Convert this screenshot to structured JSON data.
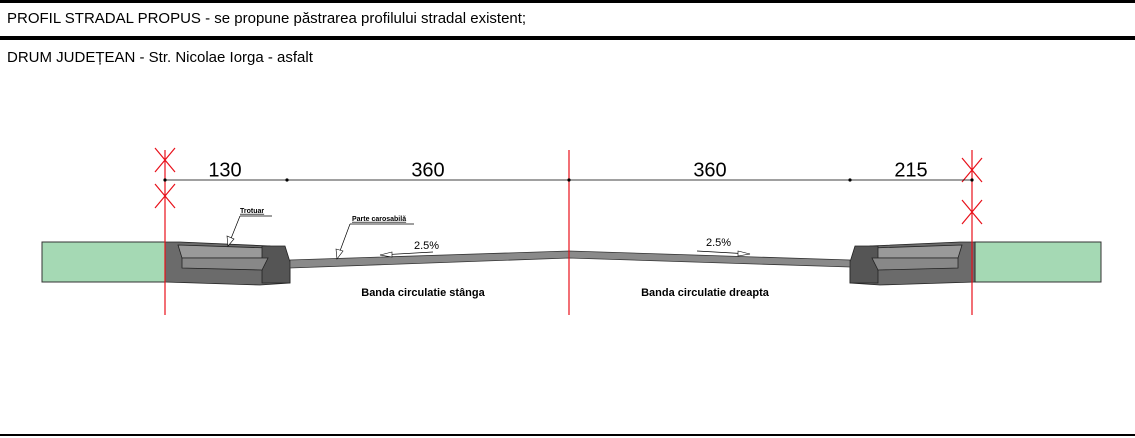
{
  "header": {
    "title": "PROFIL STRADAL PROPUS - se propune păstrarea profilului stradal existent;",
    "subtitle": "DRUM JUDEȚEAN - Str. Nicolae Iorga - asfalt"
  },
  "dimensions": [
    "130",
    "360",
    "360",
    "215"
  ],
  "labels": {
    "sidewalk": "Trotuar",
    "roadway": "Parte carosabilă",
    "slope_left": "2.5%",
    "slope_right": "2.5%",
    "lane_left": "Banda circulatie stânga",
    "lane_right": "Banda circulatie dreapta"
  }
}
